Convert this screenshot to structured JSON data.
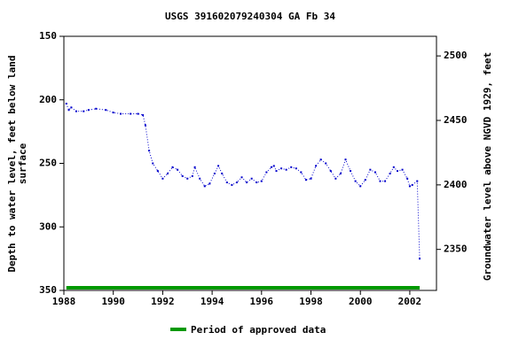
{
  "chart_data": {
    "type": "line",
    "title": "USGS 391602079240304 GA Fb  34",
    "ylabel": [
      "Depth to water level, feet below land",
      "surface"
    ],
    "y2label": "Groundwater level above NGVD 1929, feet",
    "color": "#0000cc",
    "x": [
      1988.1,
      1988.2,
      1988.3,
      1988.5,
      1988.8,
      1989.0,
      1989.3,
      1989.7,
      1990.0,
      1990.3,
      1990.7,
      1991.0,
      1991.2,
      1991.3,
      1991.45,
      1991.6,
      1991.8,
      1992.0,
      1992.2,
      1992.4,
      1992.6,
      1992.8,
      1993.0,
      1993.2,
      1993.3,
      1993.5,
      1993.7,
      1993.9,
      1994.1,
      1994.25,
      1994.4,
      1994.6,
      1994.8,
      1995.0,
      1995.2,
      1995.4,
      1995.6,
      1995.8,
      1996.0,
      1996.2,
      1996.4,
      1996.5,
      1996.6,
      1996.8,
      1997.0,
      1997.2,
      1997.4,
      1997.6,
      1997.8,
      1998.0,
      1998.2,
      1998.4,
      1998.6,
      1998.8,
      1999.0,
      1999.2,
      1999.4,
      1999.6,
      1999.8,
      2000.0,
      2000.2,
      2000.4,
      2000.6,
      2000.8,
      2001.0,
      2001.2,
      2001.35,
      2001.5,
      2001.7,
      2001.9,
      2002.0,
      2002.1,
      2002.3,
      2002.4
    ],
    "values": [
      203,
      208,
      206,
      209,
      209,
      208,
      207,
      208,
      210,
      211,
      211,
      211,
      212,
      220,
      240,
      250,
      256,
      262,
      258,
      253,
      255,
      260,
      262,
      260,
      253,
      262,
      268,
      266,
      258,
      252,
      258,
      265,
      267,
      265,
      261,
      265,
      262,
      265,
      264,
      257,
      253,
      252,
      256,
      254,
      255,
      253,
      254,
      257,
      263,
      262,
      252,
      247,
      250,
      256,
      262,
      258,
      247,
      256,
      264,
      268,
      263,
      255,
      257,
      264,
      264,
      258,
      253,
      256,
      255,
      262,
      268,
      267,
      264,
      325
    ],
    "xlim": [
      1988,
      2003.08
    ],
    "xticks": [
      1988,
      1990,
      1992,
      1994,
      1996,
      1998,
      2000,
      2002
    ],
    "ylim": [
      150,
      350
    ],
    "yticks": [
      150,
      200,
      250,
      300,
      350
    ],
    "y2lim": [
      2515.2,
      2318.2
    ],
    "y2ticks": [
      2350,
      2400,
      2450,
      2500
    ],
    "approved": {
      "name": "Period of approved data",
      "color": "#009900",
      "start": 1988.1,
      "end": 2002.4
    }
  }
}
